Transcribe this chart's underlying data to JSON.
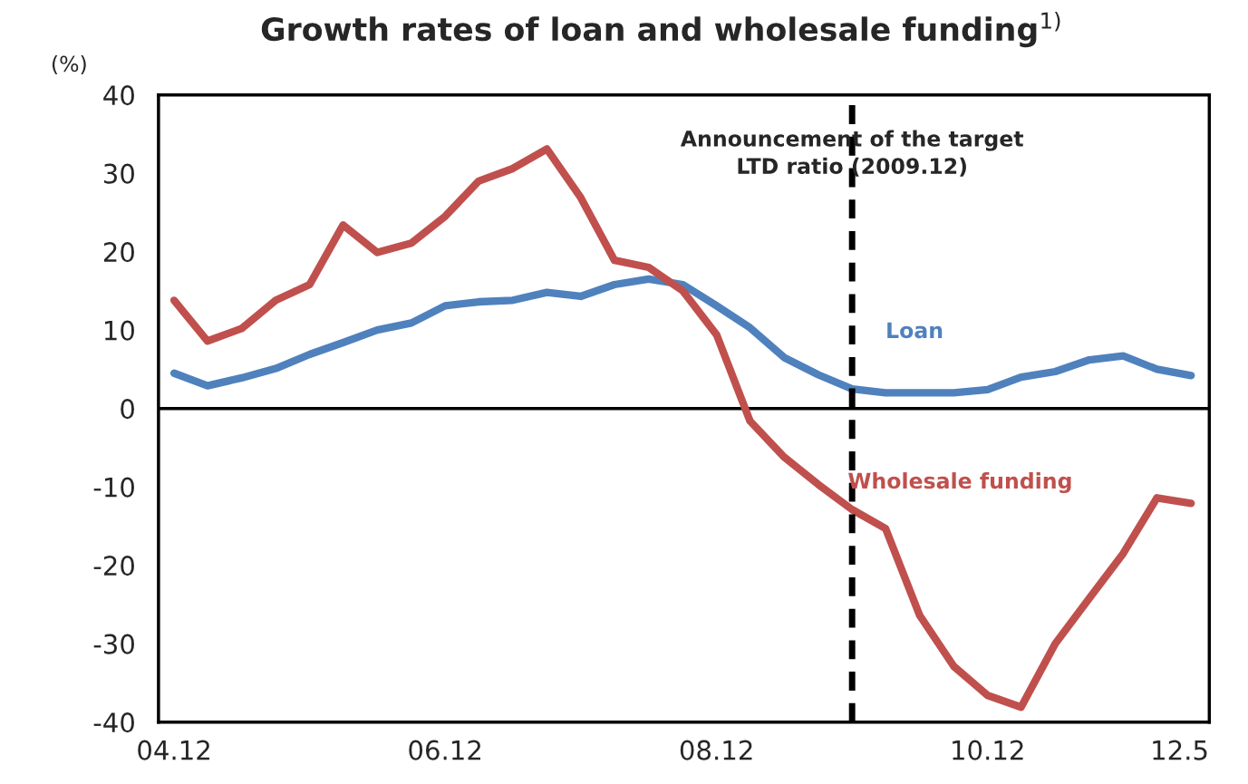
{
  "chart_data": {
    "type": "line",
    "title": "Growth rates of loan and wholesale funding$^{1)}$",
    "ylabel": "(%)",
    "x": [
      "2004-12",
      "2005-03",
      "2005-06",
      "2005-09",
      "2005-12",
      "2006-03",
      "2006-06",
      "2006-09",
      "2006-12",
      "2007-03",
      "2007-06",
      "2007-09",
      "2007-12",
      "2008-03",
      "2008-06",
      "2008-09",
      "2008-12",
      "2009-03",
      "2009-06",
      "2009-09",
      "2009-12",
      "2010-03",
      "2010-06",
      "2010-09",
      "2010-12",
      "2011-03",
      "2011-06",
      "2011-09",
      "2011-12",
      "2012-03",
      "2012-06"
    ],
    "series": [
      {
        "name": "Loan",
        "color": "#4f81bd",
        "values": [
          4.5,
          2.9,
          3.9,
          5.1,
          6.9,
          8.4,
          10.0,
          10.9,
          13.1,
          13.6,
          13.8,
          14.8,
          14.3,
          15.8,
          16.5,
          15.8,
          13.1,
          10.3,
          6.5,
          4.3,
          2.5,
          2.0,
          2.0,
          2.0,
          2.4,
          4.0,
          4.7,
          6.2,
          6.7,
          5.0,
          4.2
        ]
      },
      {
        "name": "Wholesale funding",
        "color": "#c0504d",
        "values": [
          13.8,
          8.6,
          10.2,
          13.8,
          15.8,
          23.4,
          19.9,
          21.1,
          24.5,
          29.0,
          30.6,
          33.1,
          26.9,
          18.9,
          18.0,
          15.0,
          9.4,
          -1.6,
          -6.2,
          -9.7,
          -12.9,
          -15.3,
          -26.4,
          -32.9,
          -36.6,
          -38.1,
          -30.0,
          -24.2,
          -18.5,
          -11.4,
          -12.1
        ]
      }
    ],
    "xlim": [
      "2004-10-20",
      "2012-07-20"
    ],
    "xticks": [
      {
        "value": "2004-12",
        "label": "04.12"
      },
      {
        "value": "2006-12",
        "label": "06.12"
      },
      {
        "value": "2008-12",
        "label": "08.12"
      },
      {
        "value": "2010-12",
        "label": "10.12"
      },
      {
        "value": "2012-05",
        "label": "12.5"
      }
    ],
    "ylim": [
      -40,
      40
    ],
    "yticks": [
      -40,
      -30,
      -20,
      -10,
      0,
      10,
      20,
      30,
      40
    ],
    "ref_lines": [
      {
        "axis": "y",
        "value": 0,
        "color": "#000000",
        "line_style": "solid"
      },
      {
        "axis": "x",
        "value": "2009-12",
        "label": "Announcement of the target\nLTD ratio (2009.12)",
        "color": "#000000",
        "line_style": "dashed"
      }
    ],
    "grid": false,
    "legend": false,
    "marker": "none",
    "line_style": "solid"
  }
}
